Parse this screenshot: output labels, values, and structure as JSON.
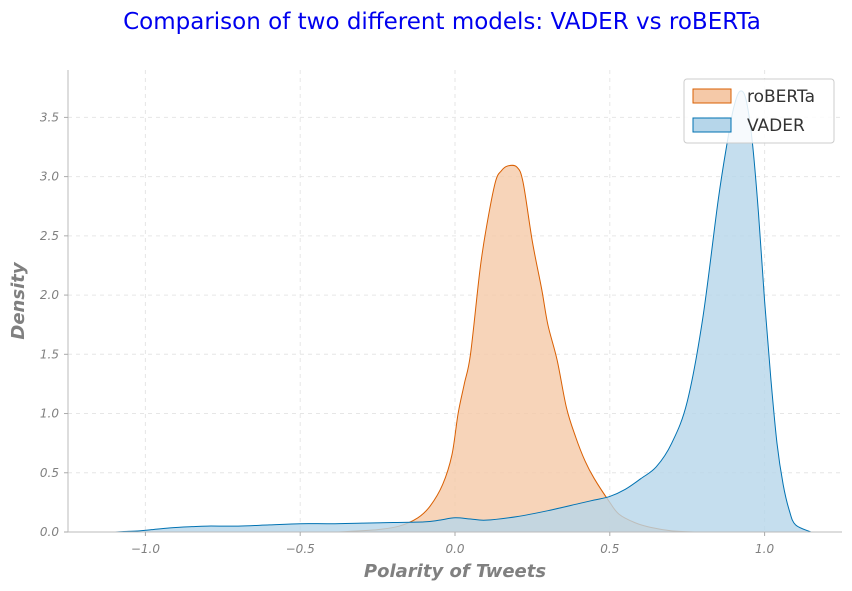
{
  "chart_data": {
    "type": "area",
    "title": "Comparison of two different models: VADER vs roBERTa",
    "xlabel": "Polarity of Tweets",
    "ylabel": "Density",
    "xlim": [
      -1.25,
      1.25
    ],
    "ylim": [
      0,
      3.9
    ],
    "xticks": [
      -1.0,
      -0.5,
      0.0,
      0.5,
      1.0
    ],
    "xtick_labels": [
      "−1.0",
      "−0.5",
      "0.0",
      "0.5",
      "1.0"
    ],
    "yticks": [
      0.0,
      0.5,
      1.0,
      1.5,
      2.0,
      2.5,
      3.0,
      3.5
    ],
    "ytick_labels": [
      "0.0",
      "0.5",
      "1.0",
      "1.5",
      "2.0",
      "2.5",
      "3.0",
      "3.5"
    ],
    "grid": true,
    "legend_position": "top-right",
    "series": [
      {
        "name": "roBERTa",
        "color": "#d95f02",
        "fill": "#f5c9a8",
        "x": [
          -0.38,
          -0.25,
          -0.18,
          -0.12,
          -0.08,
          -0.04,
          -0.01,
          0.01,
          0.03,
          0.05,
          0.08,
          0.1,
          0.13,
          0.15,
          0.17,
          0.2,
          0.22,
          0.25,
          0.28,
          0.3,
          0.33,
          0.36,
          0.39,
          0.42,
          0.45,
          0.5,
          0.53,
          0.58,
          0.63,
          0.7,
          0.78
        ],
        "y": [
          0.0,
          0.02,
          0.05,
          0.12,
          0.22,
          0.4,
          0.65,
          1.0,
          1.25,
          1.5,
          2.2,
          2.55,
          2.95,
          3.05,
          3.09,
          3.08,
          2.95,
          2.45,
          2.05,
          1.75,
          1.45,
          1.05,
          0.8,
          0.6,
          0.45,
          0.25,
          0.15,
          0.08,
          0.04,
          0.01,
          0.0
        ]
      },
      {
        "name": "VADER",
        "color": "#0072b2",
        "fill": "#b6d6ea",
        "x": [
          -1.1,
          -1.02,
          -0.98,
          -0.92,
          -0.85,
          -0.8,
          -0.7,
          -0.6,
          -0.5,
          -0.4,
          -0.3,
          -0.2,
          -0.1,
          -0.05,
          0.0,
          0.05,
          0.1,
          0.2,
          0.3,
          0.4,
          0.45,
          0.5,
          0.55,
          0.6,
          0.65,
          0.7,
          0.75,
          0.8,
          0.85,
          0.88,
          0.9,
          0.92,
          0.94,
          0.96,
          0.98,
          1.0,
          1.02,
          1.04,
          1.06,
          1.08,
          1.1,
          1.15
        ],
        "y": [
          0.0,
          0.01,
          0.02,
          0.035,
          0.045,
          0.05,
          0.05,
          0.06,
          0.07,
          0.07,
          0.075,
          0.08,
          0.085,
          0.1,
          0.12,
          0.11,
          0.1,
          0.13,
          0.18,
          0.24,
          0.27,
          0.3,
          0.36,
          0.45,
          0.55,
          0.75,
          1.1,
          1.8,
          2.8,
          3.3,
          3.58,
          3.72,
          3.65,
          3.3,
          2.7,
          1.95,
          1.3,
          0.75,
          0.4,
          0.18,
          0.06,
          0.0
        ]
      }
    ]
  }
}
